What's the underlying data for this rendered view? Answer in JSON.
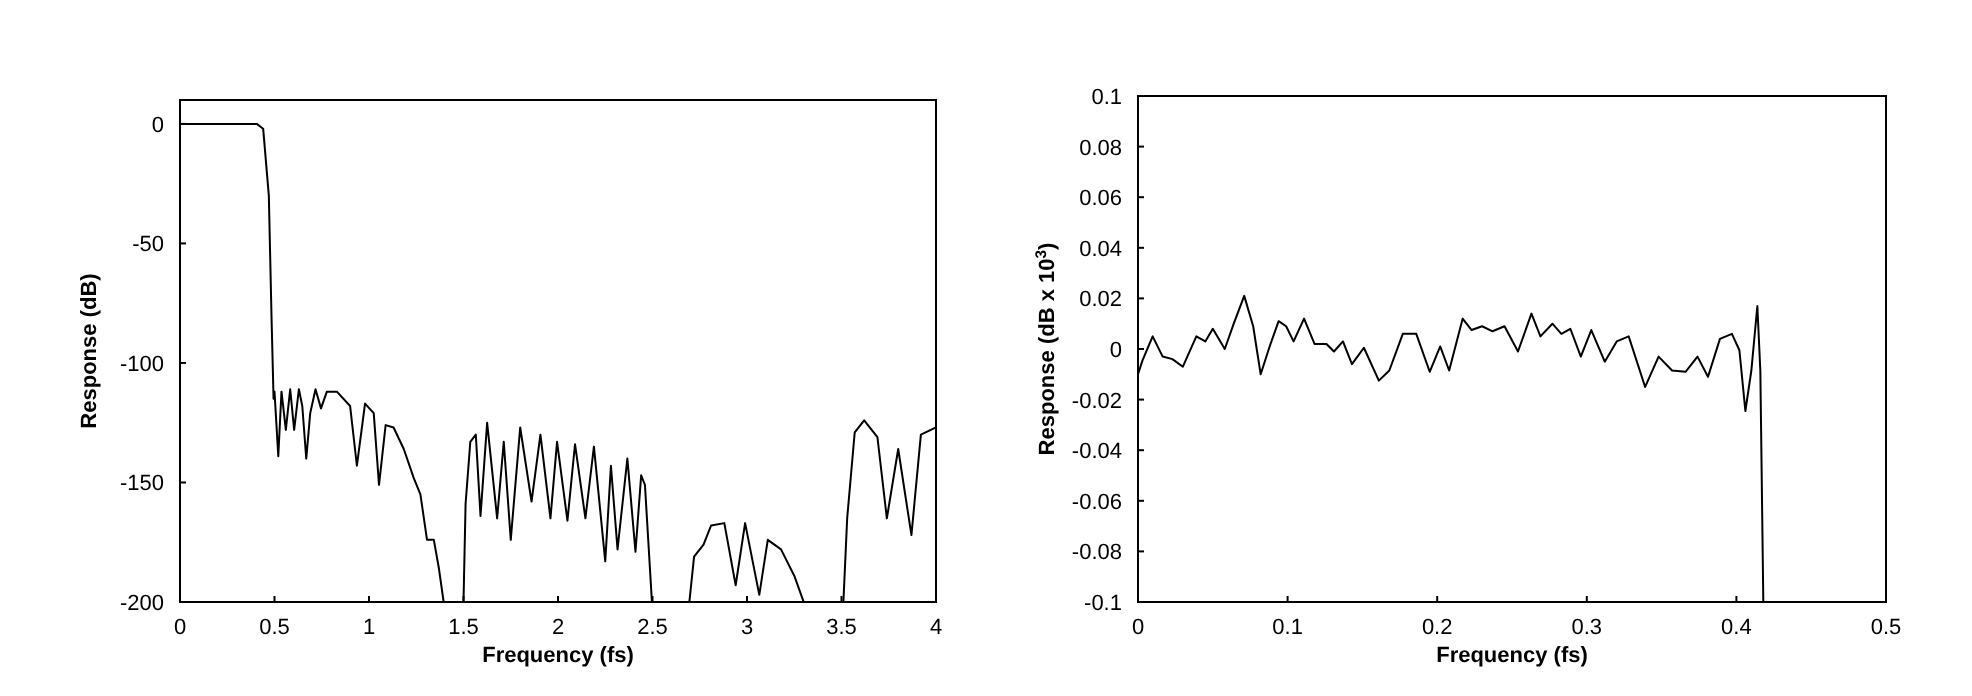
{
  "chart_data": [
    {
      "type": "line",
      "xlabel": "Frequency (fs)",
      "ylabel": "Response (dB)",
      "xlim": [
        0,
        4
      ],
      "ylim": [
        -200,
        10
      ],
      "xticks": [
        0,
        0.5,
        1,
        1.5,
        2,
        2.5,
        3,
        3.5,
        4
      ],
      "yticks": [
        -200,
        -150,
        -100,
        -50,
        0
      ],
      "grid": false,
      "marker": "none",
      "line_style": "solid",
      "series": [
        {
          "color": "#000000",
          "x": [
            0,
            0.406,
            0.44,
            0.47,
            0.484,
            0.495,
            0.5,
            0.52,
            0.537,
            0.56,
            0.583,
            0.604,
            0.629,
            0.647,
            0.668,
            0.689,
            0.717,
            0.746,
            0.777,
            0.83,
            0.9,
            0.936,
            0.979,
            1.025,
            1.053,
            1.088,
            1.13,
            1.184,
            1.236,
            1.272,
            1.307,
            1.343,
            1.37,
            1.395,
            1.5,
            1.511,
            1.536,
            1.565,
            1.59,
            1.625,
            1.678,
            1.713,
            1.75,
            1.8,
            1.86,
            1.907,
            1.96,
            1.995,
            2.05,
            2.09,
            2.145,
            2.19,
            2.25,
            2.28,
            2.315,
            2.367,
            2.41,
            2.44,
            2.46,
            2.497,
            2.695,
            2.72,
            2.77,
            2.81,
            2.88,
            2.94,
            2.99,
            3.065,
            3.11,
            3.18,
            3.25,
            3.3,
            3.51,
            3.53,
            3.57,
            3.62,
            3.69,
            3.74,
            3.8,
            3.87,
            3.92,
            4.0
          ],
          "values": [
            0,
            0,
            -2,
            -30,
            -80,
            -115,
            -112,
            -139,
            -112,
            -128,
            -111,
            -128,
            -111,
            -118,
            -140,
            -121,
            -111,
            -119,
            -112,
            -112,
            -118,
            -143,
            -117,
            -121,
            -151,
            -126,
            -127,
            -136,
            -148,
            -155,
            -174,
            -174,
            -186,
            -200,
            -200,
            -159,
            -133,
            -130,
            -164,
            -125,
            -165,
            -133,
            -174,
            -127,
            -158,
            -130,
            -165,
            -133,
            -166,
            -134,
            -165,
            -135,
            -183,
            -143,
            -178,
            -140,
            -179,
            -147,
            -151,
            -200,
            -200,
            -181,
            -176,
            -168,
            -167,
            -193,
            -167,
            -197,
            -174,
            -178,
            -189,
            -200,
            -200,
            -165,
            -129,
            -124,
            -131,
            -165,
            -136,
            -172,
            -130,
            -127
          ]
        }
      ]
    },
    {
      "type": "line",
      "xlabel": "Frequency (fs)",
      "ylabel": "Response (dB x 10$^{3}$)",
      "xlim": [
        0,
        0.5
      ],
      "ylim": [
        -0.1,
        0.1
      ],
      "xticks": [
        0,
        0.1,
        0.2,
        0.3,
        0.4,
        0.5
      ],
      "yticks": [
        -0.1,
        -0.08,
        -0.06,
        -0.04,
        -0.02,
        0,
        0.02,
        0.04,
        0.06,
        0.08,
        0.1
      ],
      "grid": false,
      "marker": "none",
      "line_style": "solid",
      "series": [
        {
          "color": "#000000",
          "x": [
            0,
            0.003,
            0.0098,
            0.0165,
            0.023,
            0.03,
            0.039,
            0.045,
            0.05,
            0.058,
            0.064,
            0.071,
            0.077,
            0.082,
            0.088,
            0.094,
            0.099,
            0.104,
            0.111,
            0.118,
            0.126,
            0.131,
            0.137,
            0.143,
            0.151,
            0.161,
            0.168,
            0.177,
            0.186,
            0.195,
            0.202,
            0.208,
            0.217,
            0.223,
            0.23,
            0.237,
            0.245,
            0.254,
            0.263,
            0.269,
            0.277,
            0.283,
            0.289,
            0.296,
            0.303,
            0.312,
            0.32,
            0.328,
            0.339,
            0.348,
            0.357,
            0.366,
            0.374,
            0.381,
            0.389,
            0.397,
            0.402,
            0.406,
            0.41,
            0.414,
            0.416,
            0.418
          ],
          "values": [
            -0.01,
            -0.0045,
            0.005,
            -0.003,
            -0.004,
            -0.007,
            0.005,
            0.003,
            0.008,
            0,
            0.01,
            0.021,
            0.009,
            -0.01,
            0.001,
            0.011,
            0.009,
            0.003,
            0.012,
            0.002,
            0.002,
            -0.001,
            0.003,
            -0.006,
            0.0005,
            -0.0125,
            -0.0085,
            0.006,
            0.006,
            -0.009,
            0.001,
            -0.0085,
            0.012,
            0.0075,
            0.009,
            0.007,
            0.009,
            -0.001,
            0.014,
            0.005,
            0.01,
            0.006,
            0.008,
            -0.003,
            0.0075,
            -0.005,
            0.003,
            0.005,
            -0.015,
            -0.003,
            -0.0085,
            -0.009,
            -0.003,
            -0.011,
            0.004,
            0.006,
            -0.0005,
            -0.0245,
            -0.0085,
            0.017,
            -0.0085,
            -0.1
          ]
        }
      ]
    }
  ]
}
